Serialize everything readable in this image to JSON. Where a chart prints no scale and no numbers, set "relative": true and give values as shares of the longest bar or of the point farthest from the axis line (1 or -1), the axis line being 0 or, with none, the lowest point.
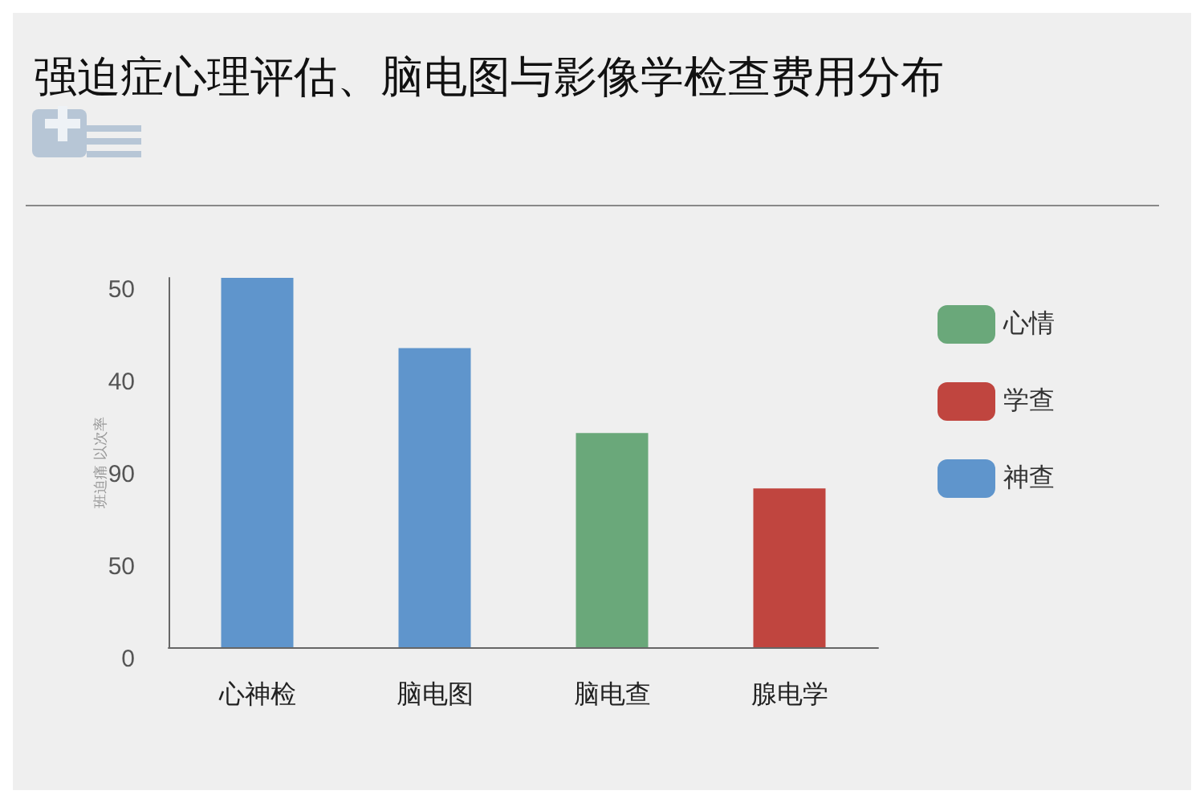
{
  "chart_data": {
    "type": "bar",
    "title": "强迫症心理评估、脑电图与影像学检查费用分布",
    "ylabel": "班迫痛 以次率",
    "categories": [
      "心神检",
      "脑电图",
      "脑电查",
      "腺电学"
    ],
    "series": [
      {
        "name": "心情",
        "color": "#6aa87a",
        "values": [
          null,
          null,
          0.58,
          null
        ]
      },
      {
        "name": "学查",
        "color": "#c0453f",
        "values": [
          null,
          null,
          null,
          0.43
        ]
      },
      {
        "name": "神查",
        "color": "#5f95cc",
        "values": [
          1,
          0.81,
          null,
          null
        ]
      }
    ],
    "relative": true,
    "stacked": true,
    "annotations": [
      "50",
      "40",
      "90",
      "50",
      "0"
    ],
    "grid": false,
    "legend": "right"
  }
}
